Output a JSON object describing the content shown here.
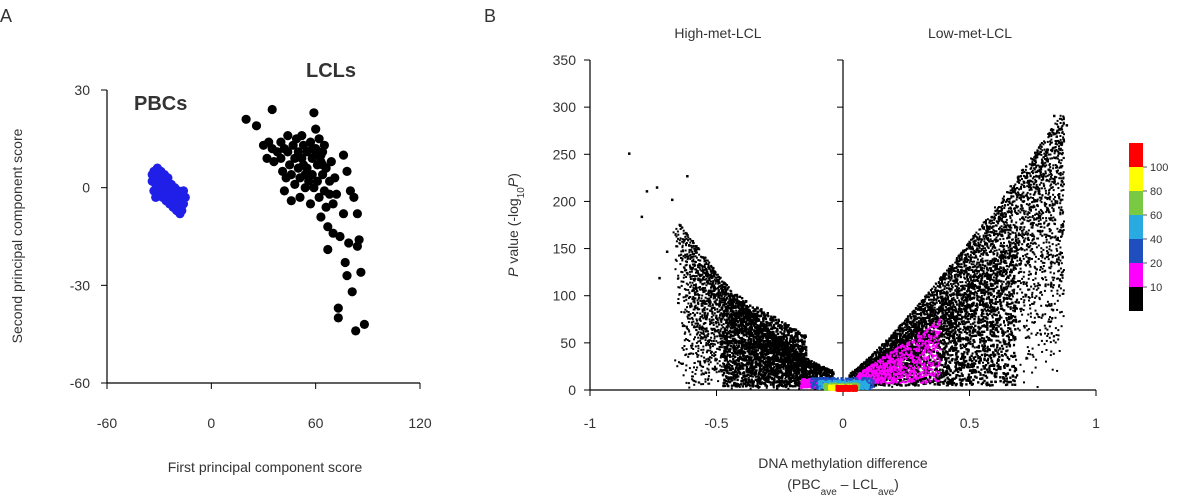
{
  "panel_labels": [
    "A",
    "B"
  ],
  "chart_data": [
    {
      "type": "scatter",
      "xlabel": "First principal component score",
      "ylabel": "Second principal component score",
      "xlim": [
        -60,
        120
      ],
      "ylim": [
        -60,
        30
      ],
      "x_ticks": [
        "-60",
        "0",
        "60",
        "120"
      ],
      "y_ticks": [
        "30",
        "0",
        "-30",
        "-60"
      ],
      "grid": false,
      "series": [
        {
          "name": "PBCs",
          "color": "#1f1fe8",
          "label_color": "#4a7fd6",
          "points": [
            [
              -33,
              5
            ],
            [
              -31,
              4
            ],
            [
              -34,
              2
            ],
            [
              -30,
              3
            ],
            [
              -32,
              1
            ],
            [
              -29,
              0
            ],
            [
              -33,
              -1
            ],
            [
              -28,
              2
            ],
            [
              -26,
              1
            ],
            [
              -27,
              -2
            ],
            [
              -25,
              -1
            ],
            [
              -24,
              -3
            ],
            [
              -22,
              -2
            ],
            [
              -23,
              -4
            ],
            [
              -20,
              -3
            ],
            [
              -21,
              -5
            ],
            [
              -19,
              -4
            ],
            [
              -17,
              -2
            ],
            [
              -18,
              -6
            ],
            [
              -16,
              -5
            ],
            [
              -30,
              -2
            ],
            [
              -28,
              -3
            ],
            [
              -26,
              -4
            ],
            [
              -24,
              -5
            ],
            [
              -22,
              -6
            ],
            [
              -20,
              -7
            ],
            [
              -18,
              -8
            ],
            [
              -31,
              6
            ],
            [
              -29,
              5
            ],
            [
              -27,
              4
            ],
            [
              -25,
              3
            ],
            [
              -23,
              1
            ],
            [
              -21,
              0
            ],
            [
              -19,
              -1
            ],
            [
              -16,
              -1
            ],
            [
              -15,
              -3
            ],
            [
              -17,
              -7
            ],
            [
              -32,
              -3
            ],
            [
              -34,
              4
            ],
            [
              -28,
              0
            ]
          ]
        },
        {
          "name": "LCLs",
          "color": "#000000",
          "label_color": "#000000",
          "points": [
            [
              20,
              21
            ],
            [
              26,
              19
            ],
            [
              35,
              24
            ],
            [
              30,
              13
            ],
            [
              32,
              9
            ],
            [
              33,
              14
            ],
            [
              35,
              12
            ],
            [
              36,
              8
            ],
            [
              38,
              11
            ],
            [
              40,
              14
            ],
            [
              40,
              9
            ],
            [
              41,
              5
            ],
            [
              42,
              12
            ],
            [
              42,
              -1
            ],
            [
              43,
              3
            ],
            [
              44,
              16
            ],
            [
              44,
              11
            ],
            [
              45,
              7
            ],
            [
              46,
              4
            ],
            [
              46,
              -4
            ],
            [
              47,
              13
            ],
            [
              48,
              9
            ],
            [
              48,
              1
            ],
            [
              49,
              15
            ],
            [
              50,
              11
            ],
            [
              50,
              6
            ],
            [
              51,
              3
            ],
            [
              51,
              -3
            ],
            [
              52,
              16
            ],
            [
              52,
              9
            ],
            [
              53,
              13
            ],
            [
              53,
              7
            ],
            [
              54,
              4
            ],
            [
              54,
              0
            ],
            [
              55,
              11
            ],
            [
              55,
              6
            ],
            [
              56,
              2
            ],
            [
              57,
              14
            ],
            [
              57,
              -5
            ],
            [
              58,
              9
            ],
            [
              58,
              4
            ],
            [
              59,
              23
            ],
            [
              59,
              0
            ],
            [
              60,
              12
            ],
            [
              60,
              18
            ],
            [
              61,
              7
            ],
            [
              61,
              2
            ],
            [
              62,
              -3
            ],
            [
              62,
              15
            ],
            [
              63,
              -9
            ],
            [
              63,
              8
            ],
            [
              64,
              11
            ],
            [
              64,
              4
            ],
            [
              65,
              -1
            ],
            [
              65,
              13
            ],
            [
              66,
              -6
            ],
            [
              66,
              6
            ],
            [
              67,
              -12
            ],
            [
              67,
              -19
            ],
            [
              68,
              2
            ],
            [
              68,
              -2
            ],
            [
              69,
              8
            ],
            [
              70,
              -14
            ],
            [
              70,
              -5
            ],
            [
              71,
              3
            ],
            [
              72,
              -2
            ],
            [
              73,
              -37
            ],
            [
              73,
              -40
            ],
            [
              74,
              -15
            ],
            [
              76,
              10
            ],
            [
              76,
              -8
            ],
            [
              77,
              -23
            ],
            [
              78,
              -27
            ],
            [
              78,
              5
            ],
            [
              79,
              -17
            ],
            [
              80,
              -1
            ],
            [
              81,
              -32
            ],
            [
              82,
              -3
            ],
            [
              83,
              -44
            ],
            [
              84,
              -18
            ],
            [
              84,
              -8
            ],
            [
              85,
              -16
            ],
            [
              86,
              -26
            ],
            [
              88,
              -42
            ],
            [
              63,
              10
            ],
            [
              64,
              7
            ],
            [
              60,
              10
            ],
            [
              58,
              12
            ]
          ]
        }
      ]
    },
    {
      "type": "scatter",
      "subtype": "volcano-density",
      "xlabel": "DNA methylation difference",
      "xlabel_sub": "(PBC_ave – LCL_ave)",
      "ylabel": "P value (-log10P)",
      "xlim": [
        -1,
        1
      ],
      "ylim": [
        0,
        350
      ],
      "x_ticks": [
        "-1",
        "-0.5",
        "0",
        "0.5",
        "1"
      ],
      "y_ticks": [
        "0",
        "50",
        "100",
        "150",
        "200",
        "250",
        "300",
        "350"
      ],
      "grid": false,
      "region_labels": [
        "High-met-LCL",
        "Low-met-LCL"
      ],
      "outliers": [
        [
          -0.85,
          252
        ],
        [
          -0.78,
          212
        ],
        [
          -0.74,
          216
        ],
        [
          -0.68,
          203
        ],
        [
          -0.7,
          148
        ],
        [
          -0.73,
          120
        ],
        [
          -0.62,
          228
        ],
        [
          -0.8,
          185
        ],
        [
          0.88,
          282
        ],
        [
          0.86,
          262
        ],
        [
          0.84,
          270
        ],
        [
          0.83,
          292
        ]
      ],
      "density_legend": {
        "levels": [
          "100",
          "80",
          "60",
          "40",
          "20",
          "10"
        ],
        "colors": [
          "#ff0000",
          "#ffff00",
          "#7ac943",
          "#29abe2",
          "#1f4fbf",
          "#ff00ff",
          "#000000"
        ]
      },
      "left_arm": {
        "min_diff": -0.68,
        "max_y": 235
      },
      "right_arm": {
        "max_diff": 0.87,
        "max_y": 292
      }
    }
  ]
}
